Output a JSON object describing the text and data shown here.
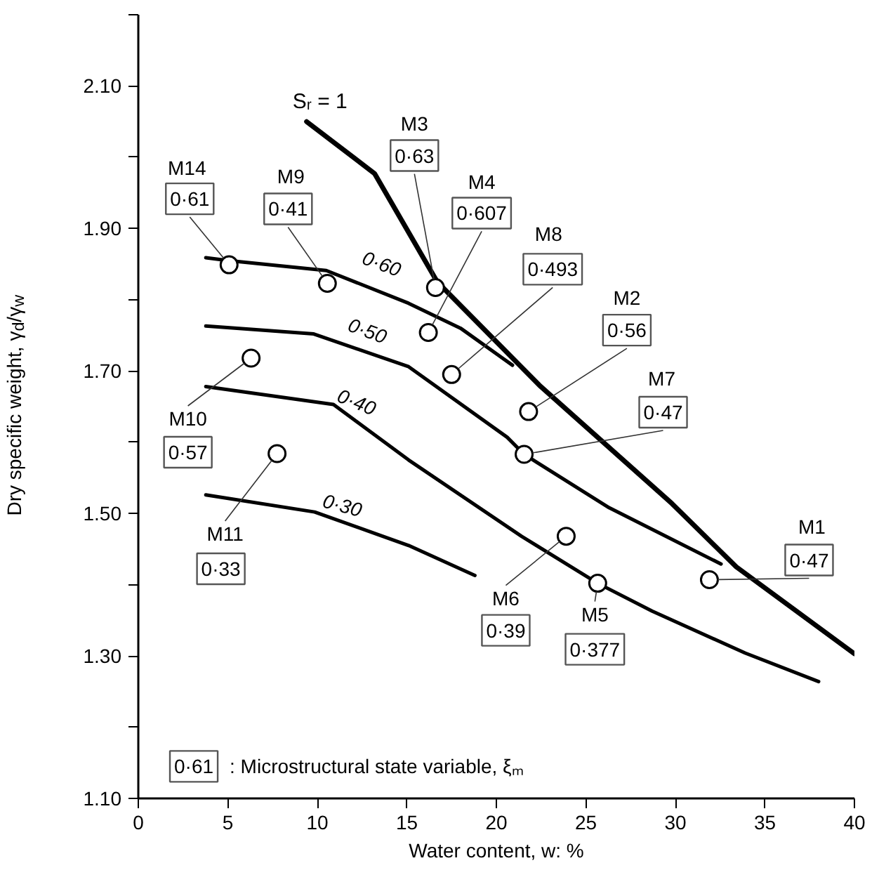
{
  "chart_data": {
    "type": "line",
    "xlabel": "Water content, w: %",
    "ylabel": "Dry specific weight, γ$_{d}$/γ$_{w}$",
    "xlim": [
      0,
      40
    ],
    "xticks": [
      0,
      5,
      10,
      15,
      20,
      25,
      30,
      35,
      40
    ],
    "ylim": [
      1.1,
      2.2
    ],
    "yticks": [
      {
        "value": 1.1,
        "label": "1.10"
      },
      {
        "value": 1.2,
        "label": null
      },
      {
        "value": 1.3,
        "label": "1.30"
      },
      {
        "value": 1.4,
        "label": null
      },
      {
        "value": 1.5,
        "label": "1.50"
      },
      {
        "value": 1.6,
        "label": null
      },
      {
        "value": 1.7,
        "label": "1.70"
      },
      {
        "value": 1.8,
        "label": null
      },
      {
        "value": 1.9,
        "label": "1.90"
      },
      {
        "value": 2.0,
        "label": null
      },
      {
        "value": 2.1,
        "label": "2.10"
      },
      {
        "value": 2.2,
        "label": null
      }
    ],
    "series": [
      {
        "name": "Sᵣ = 1",
        "color": "#000000",
        "x": [
          9.4,
          13.2,
          16.7,
          22.4,
          29.8,
          33.4,
          40.0
        ],
        "values": [
          2.05,
          1.977,
          1.825,
          1.68,
          1.514,
          1.425,
          1.303
        ]
      },
      {
        "name": "0·60",
        "color": "#000000",
        "x": [
          3.77,
          5.0,
          10.5,
          15.1,
          18.0,
          20.9
        ],
        "values": [
          1.859,
          1.855,
          1.841,
          1.795,
          1.76,
          1.708
        ]
      },
      {
        "name": "0·50",
        "color": "#000000",
        "x": [
          3.77,
          9.8,
          15.1,
          20.6,
          21.55,
          26.3,
          32.55
        ],
        "values": [
          1.763,
          1.752,
          1.706,
          1.607,
          1.583,
          1.508,
          1.429
        ]
      },
      {
        "name": "0·40",
        "color": "#000000",
        "x": [
          3.77,
          10.9,
          15.1,
          21.4,
          25.66,
          28.7,
          33.9,
          38.0
        ],
        "values": [
          1.678,
          1.653,
          1.575,
          1.468,
          1.402,
          1.363,
          1.304,
          1.264
        ]
      },
      {
        "name": "0·30",
        "color": "#000000",
        "x": [
          3.77,
          9.85,
          15.1,
          18.8
        ],
        "values": [
          1.526,
          1.502,
          1.455,
          1.413
        ]
      },
      {
        "type": "scatter",
        "marker": "circle",
        "color": "#000000",
        "x": [
          5.07,
          10.56,
          16.6,
          16.2,
          17.5,
          6.3,
          21.8,
          21.55,
          7.75,
          23.9,
          25.66,
          31.9
        ],
        "values": [
          1.849,
          1.823,
          1.817,
          1.754,
          1.695,
          1.718,
          1.643,
          1.583,
          1.584,
          1.468,
          1.402,
          1.407
        ]
      }
    ],
    "annotations": [
      "M14",
      {
        "text": "0·61",
        "x": 5.07,
        "y": 1.849
      },
      "M9",
      {
        "text": "0·41",
        "x": 10.56,
        "y": 1.823
      },
      "M3",
      {
        "text": "0·63",
        "x": 16.6,
        "y": 1.817
      },
      "M4",
      {
        "text": "0·607",
        "x": 16.2,
        "y": 1.754
      },
      "M8",
      {
        "text": "0·493",
        "x": 17.5,
        "y": 1.695
      },
      {
        "text": "M10",
        "x": 6.3,
        "y": 1.718
      },
      "0·57",
      "M2",
      {
        "text": "0·56",
        "x": 21.8,
        "y": 1.643
      },
      "M7",
      {
        "text": "0·47",
        "x": 21.55,
        "y": 1.583
      },
      {
        "text": "M11",
        "x": 7.75,
        "y": 1.584
      },
      "0·33",
      {
        "text": "M6",
        "x": 23.9,
        "y": 1.468
      },
      "0·39",
      {
        "text": "M5",
        "x": 25.66,
        "y": 1.402
      },
      "0·377",
      "M1",
      {
        "text": "0·47",
        "x": 31.9,
        "y": 1.407
      },
      "0·61",
      ": Microstructural state variable, ξₘ"
    ]
  }
}
